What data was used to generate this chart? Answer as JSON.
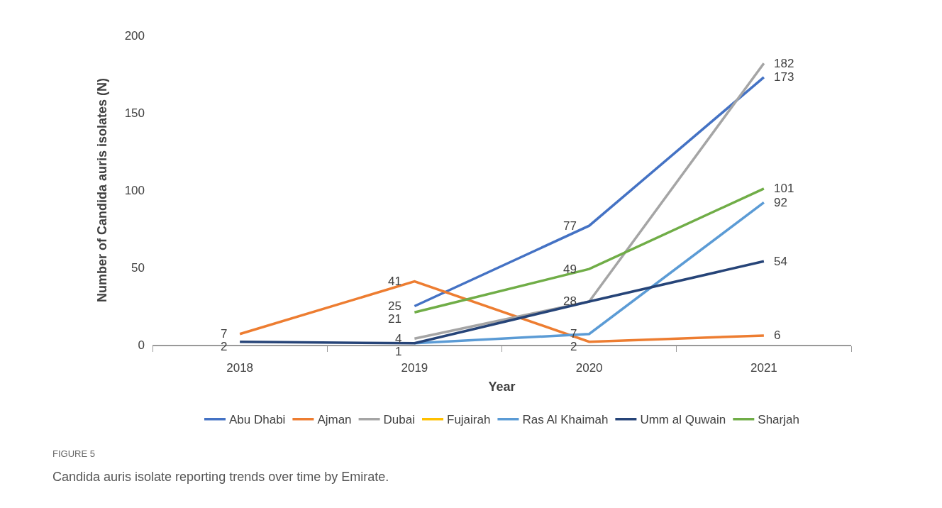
{
  "chart_data": {
    "type": "line",
    "xlabel": "Year",
    "ylabel": "Number of Candida auris isolates (N)",
    "categories": [
      "2018",
      "2019",
      "2020",
      "2021"
    ],
    "series": [
      {
        "name": "Abu Dhabi",
        "color": "#4472c4",
        "values": [
          null,
          25,
          77,
          173
        ],
        "value_labels": [
          null,
          "25",
          "77",
          "173"
        ]
      },
      {
        "name": "Ajman",
        "color": "#ed7d31",
        "values": [
          7,
          41,
          2,
          6
        ],
        "value_labels": [
          "7",
          "41",
          "2",
          "6"
        ]
      },
      {
        "name": "Dubai",
        "color": "#a5a5a5",
        "values": [
          null,
          4,
          28,
          182
        ],
        "value_labels": [
          null,
          "4",
          null,
          "182"
        ]
      },
      {
        "name": "Fujairah",
        "color": "#ffc000",
        "values": [
          null,
          null,
          null,
          null
        ]
      },
      {
        "name": "Ras Al Khaimah",
        "color": "#5b9bd5",
        "values": [
          null,
          1,
          7,
          92
        ],
        "value_labels": [
          null,
          null,
          "7",
          "92"
        ]
      },
      {
        "name": "Umm al Quwain",
        "color": "#264478",
        "values": [
          2,
          1,
          28,
          54
        ],
        "value_labels": [
          "2",
          "1",
          "28",
          "54"
        ]
      },
      {
        "name": "Sharjah",
        "color": "#70ad47",
        "values": [
          null,
          21,
          49,
          101
        ],
        "value_labels": [
          null,
          "21",
          "49",
          "101"
        ]
      }
    ],
    "ylim": [
      0,
      200
    ],
    "yticks": [
      0,
      50,
      100,
      150,
      200
    ],
    "grid": false,
    "legend": "bottom",
    "marker": "none",
    "line_style": "solid",
    "annotations": [
      "FIGURE 5",
      "Candida auris isolate reporting trends over time by Emirate."
    ]
  }
}
